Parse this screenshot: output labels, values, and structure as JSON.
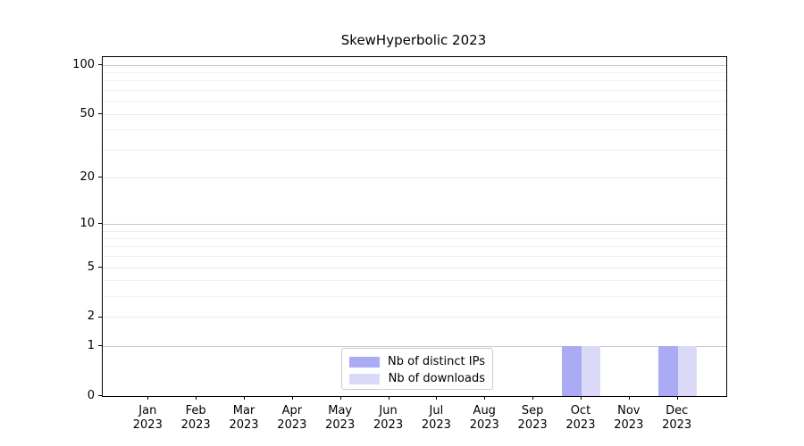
{
  "chart_data": {
    "type": "bar",
    "title": "SkewHyperbolic 2023",
    "categories": [
      {
        "month": "Jan",
        "year": "2023"
      },
      {
        "month": "Feb",
        "year": "2023"
      },
      {
        "month": "Mar",
        "year": "2023"
      },
      {
        "month": "Apr",
        "year": "2023"
      },
      {
        "month": "May",
        "year": "2023"
      },
      {
        "month": "Jun",
        "year": "2023"
      },
      {
        "month": "Jul",
        "year": "2023"
      },
      {
        "month": "Aug",
        "year": "2023"
      },
      {
        "month": "Sep",
        "year": "2023"
      },
      {
        "month": "Oct",
        "year": "2023"
      },
      {
        "month": "Nov",
        "year": "2023"
      },
      {
        "month": "Dec",
        "year": "2023"
      }
    ],
    "series": [
      {
        "name": "Nb of distinct IPs",
        "color": "#aaaaf5",
        "values": [
          0,
          0,
          0,
          0,
          0,
          0,
          0,
          0,
          0,
          1,
          0,
          1
        ]
      },
      {
        "name": "Nb of downloads",
        "color": "#dadaf8",
        "values": [
          0,
          0,
          0,
          0,
          0,
          0,
          0,
          0,
          0,
          1,
          0,
          1
        ]
      }
    ],
    "y_axis": {
      "scale": "log10(1+v)",
      "ticks": [
        0,
        1,
        2,
        5,
        10,
        20,
        50,
        100
      ],
      "major_gridline_values": [
        1,
        10,
        100
      ],
      "mid_gridline_values": [
        2,
        5,
        20,
        50
      ],
      "minor_gridline_values": [
        3,
        4,
        6,
        7,
        8,
        9,
        30,
        40,
        60,
        70,
        80,
        90
      ],
      "ylim": [
        0,
        112
      ]
    },
    "legend": {
      "position": "bottom-center",
      "entries": [
        "Nb of distinct IPs",
        "Nb of downloads"
      ]
    },
    "colors": {
      "grid_major": "#c8c8c8",
      "grid_mid": "#ebebeb",
      "grid_minor": "#f0f0f0",
      "spine": "#000000",
      "text": "#000000",
      "background": "#ffffff"
    },
    "grid": true
  }
}
